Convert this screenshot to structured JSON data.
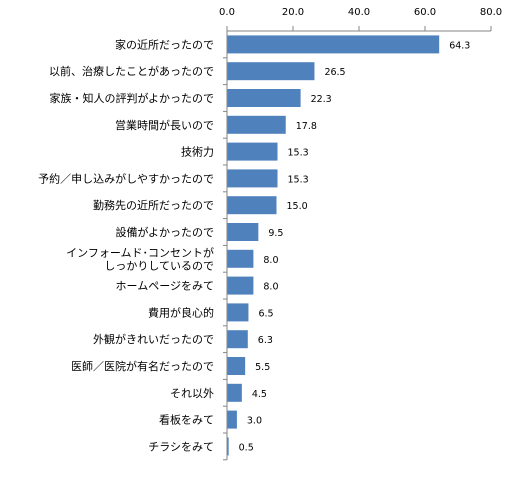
{
  "chart_data": {
    "type": "bar",
    "orientation": "horizontal",
    "title": "",
    "xlabel": "",
    "ylabel": "",
    "xlim": [
      0,
      80
    ],
    "tick_values": [
      0,
      20,
      40,
      60,
      80
    ],
    "tick_labels": [
      "0.0",
      "20.0",
      "40.0",
      "60.0",
      "80.0"
    ],
    "x_axis_position": "top",
    "grid": false,
    "legend": "none",
    "bar_color": "#4f81bd",
    "categories": [
      [
        "家の近所だったので"
      ],
      [
        "以前、治療したことがあったので"
      ],
      [
        "家族・知人の評判がよかったので"
      ],
      [
        "営業時間が長いので"
      ],
      [
        "技術力"
      ],
      [
        "予約／申し込みがしやすかったので"
      ],
      [
        "勤務先の近所だったので"
      ],
      [
        "設備がよかったので"
      ],
      [
        "インフォームド･コンセントが",
        "しっかりしているので"
      ],
      [
        "ホームページをみて"
      ],
      [
        "費用が良心的"
      ],
      [
        "外観がきれいだったので"
      ],
      [
        "医師／医院が有名だったので"
      ],
      [
        "それ以外"
      ],
      [
        "看板をみて"
      ],
      [
        "チラシをみて"
      ]
    ],
    "values": [
      64.3,
      26.5,
      22.3,
      17.8,
      15.3,
      15.3,
      15.0,
      9.5,
      8.0,
      8.0,
      6.5,
      6.3,
      5.5,
      4.5,
      3.0,
      0.5
    ],
    "value_labels": [
      "64.3",
      "26.5",
      "22.3",
      "17.8",
      "15.3",
      "15.3",
      "15.0",
      "9.5",
      "8.0",
      "8.0",
      "6.5",
      "6.3",
      "5.5",
      "4.5",
      "3.0",
      "0.5"
    ]
  }
}
